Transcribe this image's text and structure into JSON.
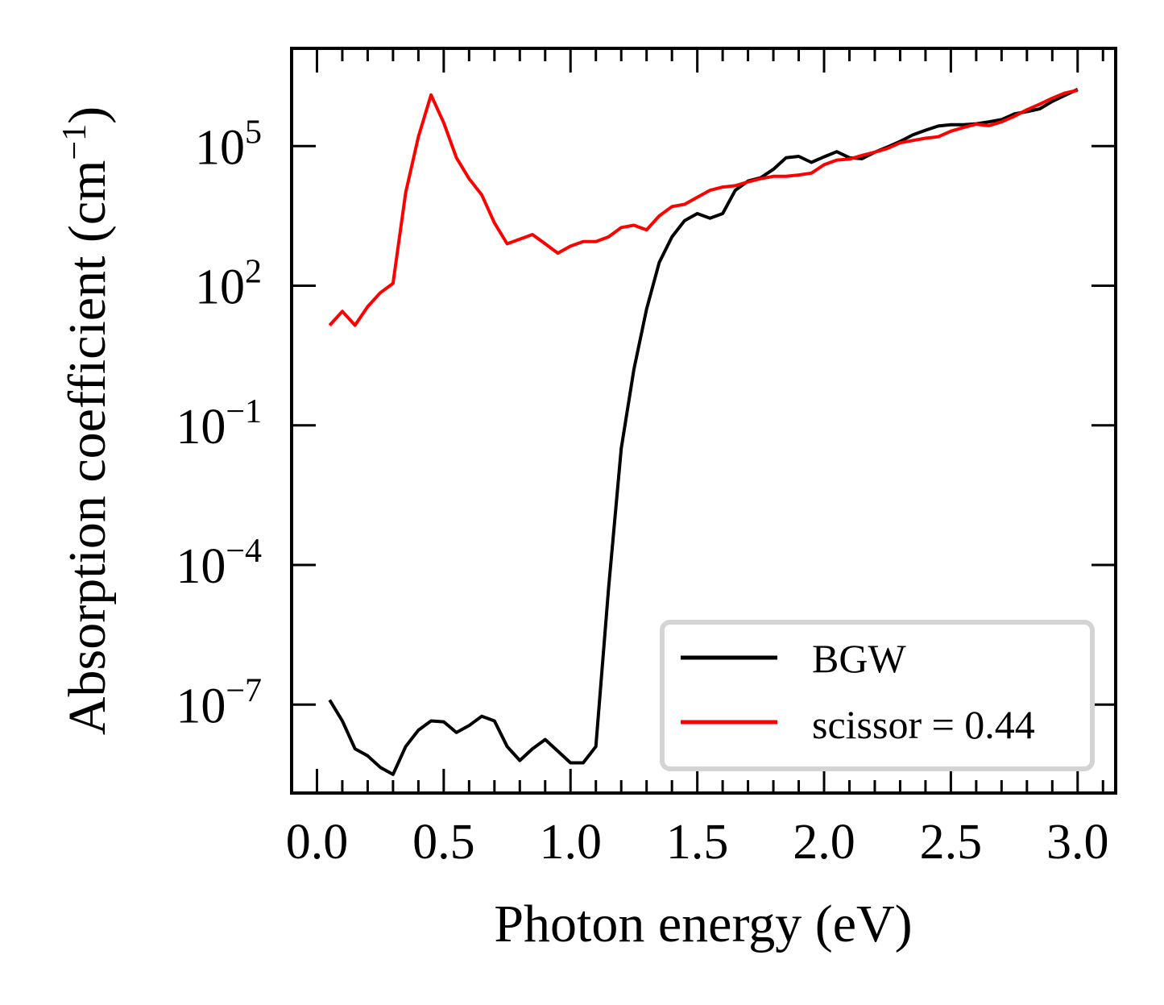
{
  "chart_data": {
    "type": "line",
    "xlabel": "Photon energy (eV)",
    "ylabel": "Absorption coefficient (cm",
    "ylabel_sup": "−1",
    "ylabel_close": ")",
    "xlim": [
      -0.1,
      3.15
    ],
    "ylim_log10": [
      -8.9,
      7.1
    ],
    "yscale": "log",
    "x_ticks": [
      {
        "value": 0.0,
        "label": "0.0"
      },
      {
        "value": 0.5,
        "label": "0.5"
      },
      {
        "value": 1.0,
        "label": "1.0"
      },
      {
        "value": 1.5,
        "label": "1.5"
      },
      {
        "value": 2.0,
        "label": "2.0"
      },
      {
        "value": 2.5,
        "label": "2.5"
      },
      {
        "value": 3.0,
        "label": "3.0"
      }
    ],
    "y_ticks": [
      {
        "exp": 5,
        "base": "10",
        "sup": "5"
      },
      {
        "exp": 2,
        "base": "10",
        "sup": "2"
      },
      {
        "exp": -1,
        "base": "10",
        "sup": "−1"
      },
      {
        "exp": -4,
        "base": "10",
        "sup": "−4"
      },
      {
        "exp": -7,
        "base": "10",
        "sup": "−7"
      }
    ],
    "legend_position": "lower-right",
    "grid": false,
    "series": [
      {
        "name": "BGW",
        "color": "#000000",
        "x": [
          0.05,
          0.1,
          0.15,
          0.2,
          0.25,
          0.3,
          0.35,
          0.4,
          0.45,
          0.5,
          0.55,
          0.6,
          0.65,
          0.7,
          0.75,
          0.8,
          0.85,
          0.9,
          0.95,
          1.0,
          1.05,
          1.1,
          1.15,
          1.2,
          1.25,
          1.3,
          1.35,
          1.4,
          1.45,
          1.5,
          1.55,
          1.6,
          1.65,
          1.7,
          1.75,
          1.8,
          1.85,
          1.9,
          1.95,
          2.0,
          2.05,
          2.1,
          2.15,
          2.2,
          2.25,
          2.3,
          2.35,
          2.4,
          2.45,
          2.5,
          2.55,
          2.6,
          2.65,
          2.7,
          2.75,
          2.8,
          2.85,
          2.9,
          2.95,
          3.0
        ],
        "y_log10": [
          -6.9,
          -7.35,
          -7.95,
          -8.1,
          -8.35,
          -8.5,
          -7.9,
          -7.55,
          -7.35,
          -7.37,
          -7.6,
          -7.45,
          -7.25,
          -7.35,
          -7.9,
          -8.2,
          -7.95,
          -7.75,
          -8.0,
          -8.25,
          -8.25,
          -7.9,
          -4.5,
          -1.5,
          0.2,
          1.5,
          2.5,
          3.05,
          3.4,
          3.55,
          3.45,
          3.55,
          4.05,
          4.25,
          4.32,
          4.5,
          4.75,
          4.78,
          4.65,
          4.77,
          4.88,
          4.75,
          4.73,
          4.87,
          4.98,
          5.1,
          5.24,
          5.34,
          5.43,
          5.46,
          5.46,
          5.48,
          5.52,
          5.57,
          5.69,
          5.74,
          5.8,
          5.96,
          6.09,
          6.22
        ]
      },
      {
        "name": "scissor = 0.44",
        "color": "#ff0000",
        "x": [
          0.05,
          0.1,
          0.15,
          0.2,
          0.25,
          0.3,
          0.35,
          0.4,
          0.45,
          0.5,
          0.55,
          0.6,
          0.65,
          0.7,
          0.75,
          0.8,
          0.85,
          0.9,
          0.95,
          1.0,
          1.05,
          1.1,
          1.15,
          1.2,
          1.25,
          1.3,
          1.35,
          1.4,
          1.45,
          1.5,
          1.55,
          1.6,
          1.65,
          1.7,
          1.75,
          1.8,
          1.85,
          1.9,
          1.95,
          2.0,
          2.05,
          2.1,
          2.15,
          2.2,
          2.25,
          2.3,
          2.35,
          2.4,
          2.45,
          2.5,
          2.55,
          2.6,
          2.65,
          2.7,
          2.75,
          2.8,
          2.85,
          2.9,
          2.95,
          3.0
        ],
        "y_log10": [
          1.15,
          1.45,
          1.15,
          1.55,
          1.85,
          2.05,
          4.0,
          5.2,
          6.1,
          5.5,
          4.75,
          4.3,
          3.95,
          3.35,
          2.9,
          3.0,
          3.1,
          2.9,
          2.7,
          2.85,
          2.95,
          2.95,
          3.05,
          3.25,
          3.3,
          3.2,
          3.5,
          3.7,
          3.75,
          3.9,
          4.05,
          4.12,
          4.15,
          4.23,
          4.3,
          4.35,
          4.35,
          4.38,
          4.42,
          4.6,
          4.7,
          4.72,
          4.8,
          4.87,
          4.95,
          5.07,
          5.12,
          5.17,
          5.2,
          5.32,
          5.4,
          5.47,
          5.44,
          5.52,
          5.64,
          5.78,
          5.9,
          6.03,
          6.14,
          6.2
        ]
      }
    ]
  }
}
